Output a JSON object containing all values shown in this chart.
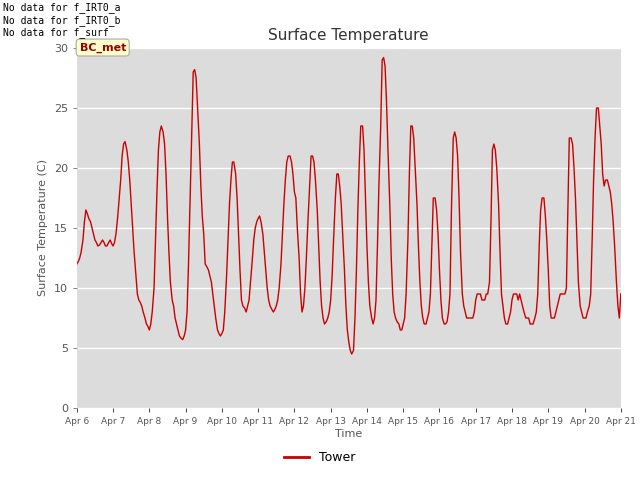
{
  "title": "Surface Temperature",
  "xlabel": "Time",
  "ylabel": "Surface Temperature (C)",
  "ylim": [
    0,
    30
  ],
  "legend_label": "Tower",
  "line_color": "#cc0000",
  "background_color": "#dcdcdc",
  "fig_background": "#ffffff",
  "annotations": [
    "No data for f_IRT0_a",
    "No data for f_IRT0_b",
    "No data for f_surf"
  ],
  "bc_met_label": "BC_met",
  "x_tick_labels": [
    "Apr 6",
    "Apr 7",
    "Apr 8",
    "Apr 9",
    "Apr 10",
    "Apr 11",
    "Apr 12",
    "Apr 13",
    "Apr 14",
    "Apr 15",
    "Apr 16",
    "Apr 17",
    "Apr 18",
    "Apr 19",
    "Apr 20",
    "Apr 21"
  ],
  "x_tick_positions": [
    0,
    1,
    2,
    3,
    4,
    5,
    6,
    7,
    8,
    9,
    10,
    11,
    12,
    13,
    14,
    15
  ],
  "yticks": [
    0,
    5,
    10,
    15,
    20,
    25,
    30
  ],
  "time_values": [
    0.0,
    0.04,
    0.08,
    0.12,
    0.17,
    0.21,
    0.25,
    0.29,
    0.33,
    0.38,
    0.42,
    0.46,
    0.5,
    0.54,
    0.58,
    0.63,
    0.67,
    0.71,
    0.75,
    0.79,
    0.83,
    0.88,
    0.92,
    0.96,
    1.0,
    1.04,
    1.08,
    1.13,
    1.17,
    1.21,
    1.25,
    1.29,
    1.33,
    1.38,
    1.42,
    1.46,
    1.5,
    1.54,
    1.58,
    1.63,
    1.67,
    1.71,
    1.75,
    1.79,
    1.83,
    1.88,
    1.92,
    1.96,
    2.0,
    2.04,
    2.08,
    2.13,
    2.17,
    2.21,
    2.25,
    2.29,
    2.33,
    2.38,
    2.42,
    2.46,
    2.5,
    2.54,
    2.58,
    2.63,
    2.67,
    2.71,
    2.75,
    2.79,
    2.83,
    2.88,
    2.92,
    2.96,
    3.0,
    3.04,
    3.08,
    3.13,
    3.17,
    3.21,
    3.25,
    3.29,
    3.33,
    3.38,
    3.42,
    3.46,
    3.5,
    3.54,
    3.58,
    3.63,
    3.67,
    3.71,
    3.75,
    3.79,
    3.83,
    3.88,
    3.92,
    3.96,
    4.0,
    4.04,
    4.08,
    4.13,
    4.17,
    4.21,
    4.25,
    4.29,
    4.33,
    4.38,
    4.42,
    4.46,
    4.5,
    4.54,
    4.58,
    4.63,
    4.67,
    4.71,
    4.75,
    4.79,
    4.83,
    4.88,
    4.92,
    4.96,
    5.0,
    5.04,
    5.08,
    5.13,
    5.17,
    5.21,
    5.25,
    5.29,
    5.33,
    5.38,
    5.42,
    5.46,
    5.5,
    5.54,
    5.58,
    5.63,
    5.67,
    5.71,
    5.75,
    5.79,
    5.83,
    5.88,
    5.92,
    5.96,
    6.0,
    6.04,
    6.08,
    6.13,
    6.17,
    6.21,
    6.25,
    6.29,
    6.33,
    6.38,
    6.42,
    6.46,
    6.5,
    6.54,
    6.58,
    6.63,
    6.67,
    6.71,
    6.75,
    6.79,
    6.83,
    6.88,
    6.92,
    6.96,
    7.0,
    7.04,
    7.08,
    7.13,
    7.17,
    7.21,
    7.25,
    7.29,
    7.33,
    7.38,
    7.42,
    7.46,
    7.5,
    7.54,
    7.58,
    7.63,
    7.67,
    7.71,
    7.75,
    7.79,
    7.83,
    7.88,
    7.92,
    7.96,
    8.0,
    8.04,
    8.08,
    8.13,
    8.17,
    8.21,
    8.25,
    8.29,
    8.33,
    8.38,
    8.42,
    8.46,
    8.5,
    8.54,
    8.58,
    8.63,
    8.67,
    8.71,
    8.75,
    8.79,
    8.83,
    8.88,
    8.92,
    8.96,
    9.0,
    9.04,
    9.08,
    9.13,
    9.17,
    9.21,
    9.25,
    9.29,
    9.33,
    9.38,
    9.42,
    9.46,
    9.5,
    9.54,
    9.58,
    9.63,
    9.67,
    9.71,
    9.75,
    9.79,
    9.83,
    9.88,
    9.92,
    9.96,
    10.0,
    10.04,
    10.08,
    10.13,
    10.17,
    10.21,
    10.25,
    10.29,
    10.33,
    10.38,
    10.42,
    10.46,
    10.5,
    10.54,
    10.58,
    10.63,
    10.67,
    10.71,
    10.75,
    10.79,
    10.83,
    10.88,
    10.92,
    10.96,
    11.0,
    11.04,
    11.08,
    11.13,
    11.17,
    11.21,
    11.25,
    11.29,
    11.33,
    11.38,
    11.42,
    11.46,
    11.5,
    11.54,
    11.58,
    11.63,
    11.67,
    11.71,
    11.75,
    11.79,
    11.83,
    11.88,
    11.92,
    11.96,
    12.0,
    12.04,
    12.08,
    12.13,
    12.17,
    12.21,
    12.25,
    12.29,
    12.33,
    12.38,
    12.42,
    12.46,
    12.5,
    12.54,
    12.58,
    12.63,
    12.67,
    12.71,
    12.75,
    12.79,
    12.83,
    12.88,
    12.92,
    12.96,
    13.0,
    13.04,
    13.08,
    13.13,
    13.17,
    13.21,
    13.25,
    13.29,
    13.33,
    13.38,
    13.42,
    13.46,
    13.5,
    13.54,
    13.58,
    13.63,
    13.67,
    13.71,
    13.75,
    13.79,
    13.83,
    13.88,
    13.92,
    13.96,
    14.0,
    14.04,
    14.08,
    14.13,
    14.17,
    14.21,
    14.25,
    14.29,
    14.33,
    14.38,
    14.42,
    14.46,
    14.5,
    14.54,
    14.58,
    14.63,
    14.67,
    14.71,
    14.75,
    14.79,
    14.83,
    14.88,
    14.92,
    14.96,
    15.0
  ],
  "temp_values": [
    12.0,
    12.2,
    12.5,
    13.0,
    14.0,
    15.5,
    16.5,
    16.2,
    15.8,
    15.5,
    15.0,
    14.5,
    14.0,
    13.8,
    13.5,
    13.6,
    13.8,
    14.0,
    13.8,
    13.5,
    13.5,
    13.8,
    14.0,
    13.7,
    13.5,
    13.8,
    14.5,
    16.0,
    17.5,
    19.0,
    21.0,
    22.0,
    22.2,
    21.5,
    20.5,
    19.0,
    17.0,
    15.0,
    13.0,
    11.0,
    9.5,
    9.0,
    8.8,
    8.5,
    8.0,
    7.5,
    7.0,
    6.8,
    6.5,
    7.0,
    8.0,
    10.0,
    14.0,
    18.0,
    21.5,
    23.0,
    23.5,
    23.0,
    22.0,
    19.5,
    16.0,
    13.0,
    10.5,
    9.0,
    8.5,
    7.5,
    7.0,
    6.5,
    6.0,
    5.8,
    5.7,
    6.0,
    6.5,
    8.0,
    12.0,
    18.0,
    23.0,
    28.0,
    28.2,
    27.5,
    25.0,
    22.0,
    18.5,
    16.0,
    14.5,
    12.0,
    11.8,
    11.5,
    11.0,
    10.5,
    9.5,
    8.5,
    7.5,
    6.5,
    6.2,
    6.0,
    6.2,
    6.5,
    8.0,
    11.0,
    14.0,
    17.0,
    19.0,
    20.5,
    20.5,
    19.5,
    17.5,
    14.5,
    11.5,
    9.0,
    8.5,
    8.3,
    8.0,
    8.5,
    9.0,
    10.5,
    12.0,
    14.0,
    15.0,
    15.5,
    15.8,
    16.0,
    15.5,
    14.5,
    13.0,
    11.5,
    10.0,
    9.0,
    8.5,
    8.2,
    8.0,
    8.2,
    8.5,
    9.0,
    10.0,
    12.0,
    14.5,
    17.0,
    19.0,
    20.5,
    21.0,
    21.0,
    20.5,
    19.5,
    18.0,
    17.5,
    15.0,
    12.5,
    9.5,
    8.0,
    8.5,
    10.0,
    12.5,
    16.0,
    18.5,
    21.0,
    21.0,
    20.5,
    19.0,
    16.5,
    13.5,
    10.5,
    8.5,
    7.5,
    7.0,
    7.2,
    7.5,
    8.0,
    9.0,
    11.0,
    14.0,
    17.5,
    19.5,
    19.5,
    18.5,
    17.0,
    14.5,
    11.5,
    8.5,
    6.5,
    5.5,
    4.8,
    4.5,
    4.8,
    7.5,
    11.5,
    16.5,
    20.5,
    23.5,
    23.5,
    21.5,
    17.5,
    13.5,
    10.5,
    8.5,
    7.5,
    7.0,
    7.5,
    9.0,
    13.5,
    18.5,
    23.5,
    29.0,
    29.2,
    28.5,
    25.5,
    21.5,
    17.0,
    12.5,
    9.5,
    8.0,
    7.5,
    7.2,
    7.0,
    6.5,
    6.5,
    7.0,
    7.5,
    9.5,
    14.0,
    19.5,
    23.5,
    23.5,
    22.5,
    20.0,
    17.0,
    13.5,
    10.5,
    8.5,
    7.5,
    7.0,
    7.0,
    7.5,
    8.0,
    9.5,
    13.5,
    17.5,
    17.5,
    16.5,
    14.5,
    11.5,
    9.0,
    7.5,
    7.0,
    7.0,
    7.2,
    8.0,
    9.5,
    16.5,
    22.5,
    23.0,
    22.5,
    21.0,
    17.5,
    13.0,
    9.5,
    8.5,
    8.0,
    7.5,
    7.5,
    7.5,
    7.5,
    7.5,
    8.0,
    9.0,
    9.5,
    9.5,
    9.5,
    9.0,
    9.0,
    9.0,
    9.5,
    9.5,
    10.5,
    15.5,
    21.5,
    22.0,
    21.5,
    20.0,
    17.0,
    13.0,
    9.5,
    8.5,
    7.5,
    7.0,
    7.0,
    7.5,
    8.0,
    9.0,
    9.5,
    9.5,
    9.5,
    9.0,
    9.5,
    9.0,
    8.5,
    8.0,
    7.5,
    7.5,
    7.5,
    7.0,
    7.0,
    7.0,
    7.5,
    8.0,
    9.5,
    13.5,
    16.5,
    17.5,
    17.5,
    16.0,
    14.0,
    11.5,
    8.5,
    7.5,
    7.5,
    7.5,
    8.0,
    8.5,
    9.0,
    9.5,
    9.5,
    9.5,
    9.5,
    10.0,
    16.5,
    22.5,
    22.5,
    22.0,
    20.0,
    17.5,
    14.0,
    10.5,
    8.5,
    8.0,
    7.5,
    7.5,
    7.5,
    8.0,
    8.5,
    9.5,
    14.0,
    19.0,
    22.5,
    25.0,
    25.0,
    23.5,
    22.0,
    19.5,
    18.5,
    19.0,
    19.0,
    18.5,
    18.0,
    17.0,
    15.5,
    13.5,
    10.5,
    8.5,
    7.5,
    9.5
  ]
}
